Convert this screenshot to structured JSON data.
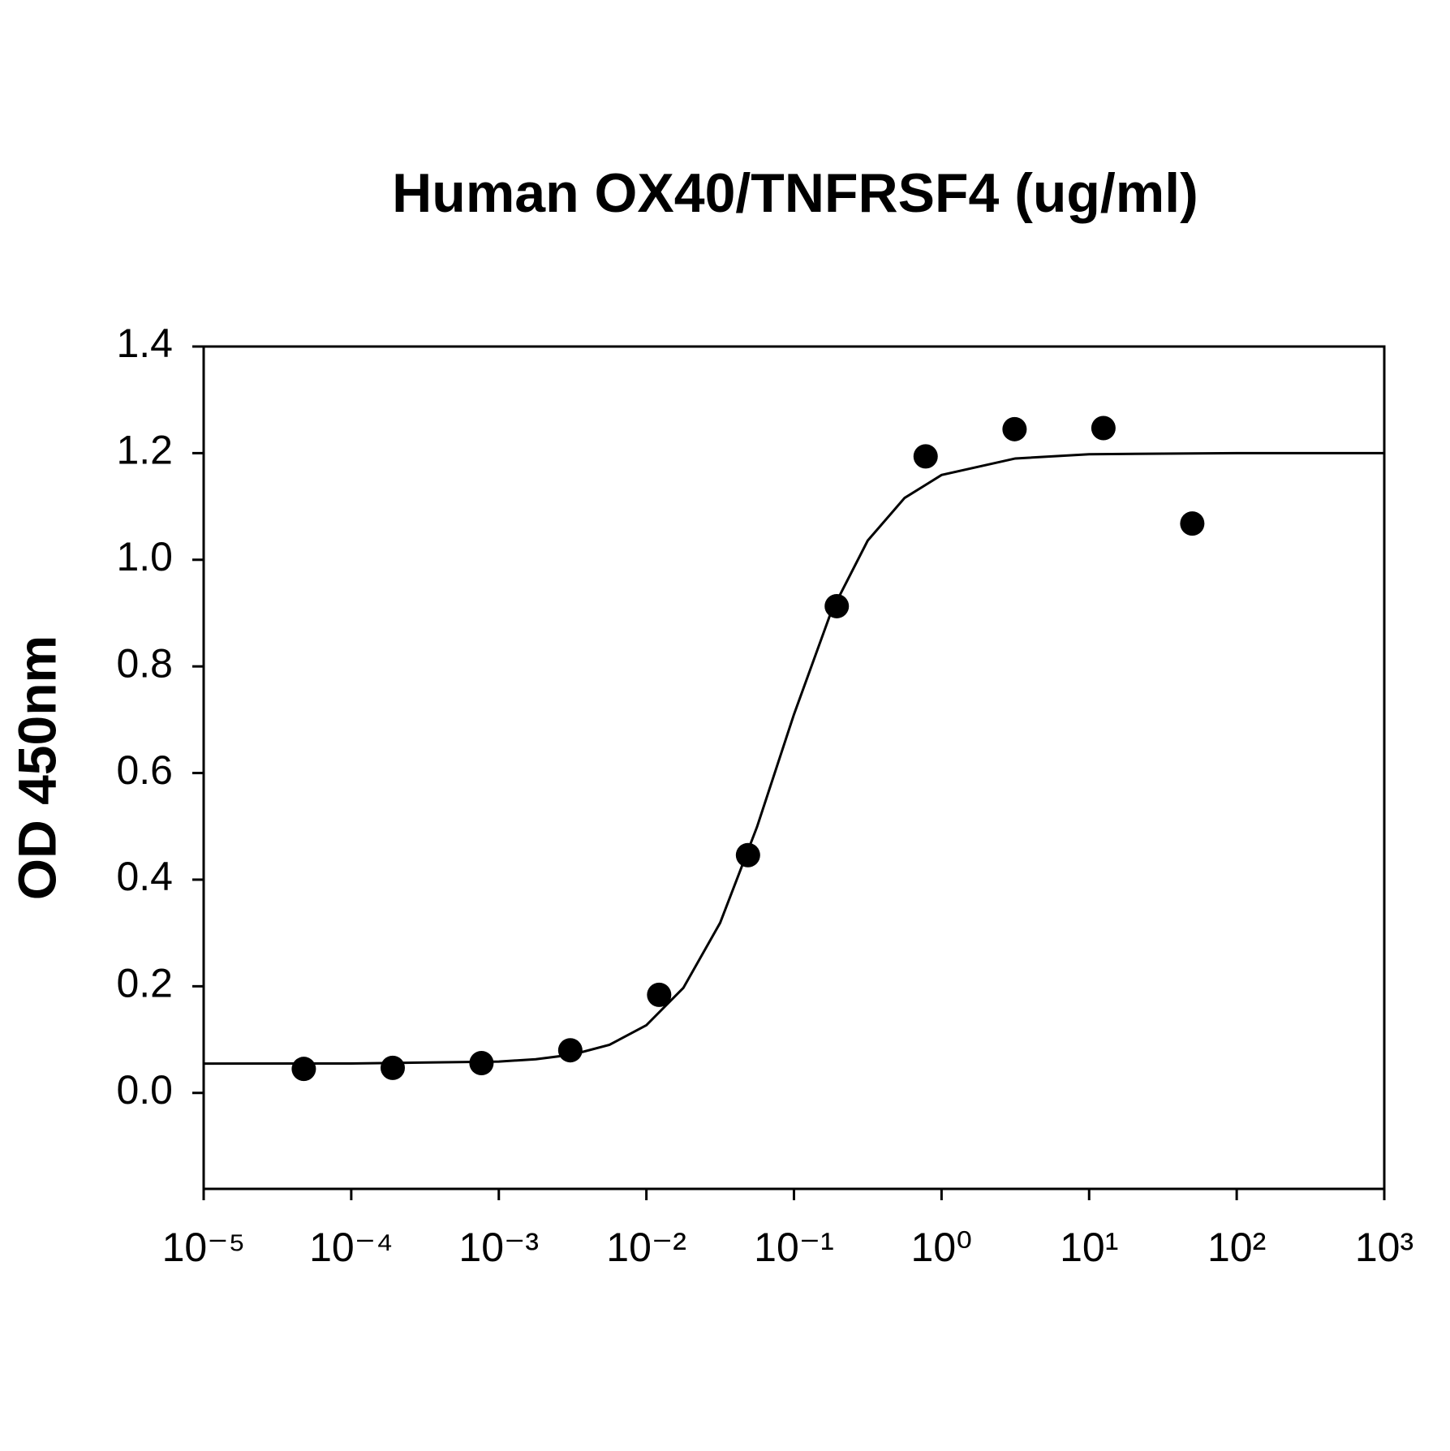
{
  "chart_data": {
    "type": "scatter",
    "title": "Human OX40/TNFRSF4 (ug/ml)",
    "y_label": "OD 450nm",
    "x_scale": "log",
    "xlim": [
      1e-05,
      1000
    ],
    "xticks": [
      {
        "value": 1e-05,
        "label": "10⁻⁵"
      },
      {
        "value": 0.0001,
        "label": "10⁻⁴"
      },
      {
        "value": 0.001,
        "label": "10⁻³"
      },
      {
        "value": 0.01,
        "label": "10⁻²"
      },
      {
        "value": 0.1,
        "label": "10⁻¹"
      },
      {
        "value": 1,
        "label": "10⁰"
      },
      {
        "value": 10,
        "label": "10¹"
      },
      {
        "value": 100,
        "label": "10²"
      },
      {
        "value": 1000,
        "label": "10³"
      }
    ],
    "ylim": [
      -0.18,
      1.4
    ],
    "yticks": [
      {
        "value": 0,
        "label": "0.0"
      },
      0.2,
      0.4,
      0.6,
      0.8,
      {
        "value": 1,
        "label": "1.0"
      },
      1.2,
      1.4
    ],
    "series": [
      {
        "type": "scatter",
        "color": "#000000",
        "x": [
          4.77e-05,
          0.000191,
          0.000763,
          0.00305,
          0.0122,
          0.0488,
          0.195,
          0.78,
          3.125,
          12.5,
          50
        ],
        "values": [
          0.045,
          0.047,
          0.056,
          0.08,
          0.184,
          0.446,
          0.913,
          1.194,
          1.245,
          1.247,
          1.068
        ]
      },
      {
        "type": "line",
        "color": "#000000",
        "x": [
          1e-05,
          0.0001,
          0.001,
          0.00178,
          0.00316,
          0.00562,
          0.01,
          0.0178,
          0.0316,
          0.0562,
          0.1,
          0.178,
          0.316,
          0.562,
          1,
          3.16,
          10,
          100,
          1000
        ],
        "values": [
          0.055,
          0.0552,
          0.0588,
          0.0631,
          0.0719,
          0.0902,
          0.127,
          0.197,
          0.319,
          0.499,
          0.71,
          0.901,
          1.036,
          1.116,
          1.159,
          1.19,
          1.198,
          1.2,
          1.2
        ]
      }
    ]
  }
}
